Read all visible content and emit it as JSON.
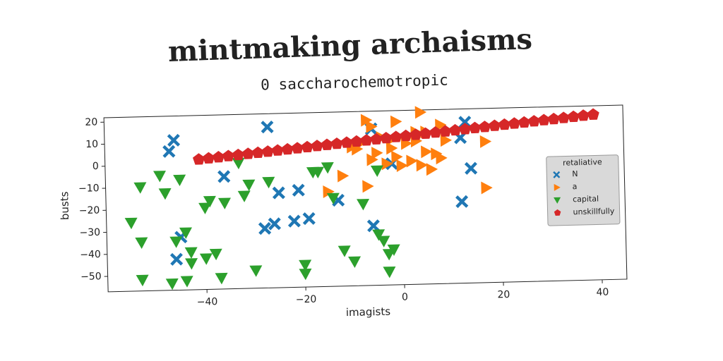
{
  "chart_data": {
    "type": "scatter",
    "title": "mintmaking archaisms",
    "subtitle": "0 saccharochemotropic",
    "x_label": "imagists",
    "y_label": "busts",
    "xlim": [
      -60,
      45
    ],
    "ylim": [
      -57,
      22
    ],
    "xticks": [
      {
        "value": -40,
        "label": "−40"
      },
      {
        "value": -20,
        "label": "−20"
      },
      0,
      20,
      40
    ],
    "yticks": [
      {
        "value": -50,
        "label": "−50"
      },
      {
        "value": -40,
        "label": "−40"
      },
      {
        "value": -30,
        "label": "−30"
      },
      {
        "value": -20,
        "label": "−20"
      },
      {
        "value": -10,
        "label": "−10"
      },
      0,
      10,
      20
    ],
    "legend_title": "retaliative",
    "legend_position": "center right",
    "series": [
      {
        "name": "N",
        "color": "#1f77b4",
        "marker": "x",
        "x": [
          -46,
          -47,
          -27,
          -36,
          -25,
          -21,
          -28,
          -26,
          -22,
          -19,
          -6,
          -13,
          -6,
          -2,
          12,
          13,
          14,
          12,
          -45,
          -46
        ],
        "y": [
          11,
          6,
          16,
          -6,
          -14,
          -13,
          -30,
          -28,
          -27,
          -26,
          -30,
          -18,
          14,
          -2,
          9,
          16,
          -5,
          -20,
          -33,
          -43
        ]
      },
      {
        "name": "a",
        "color": "#ff7f0e",
        "marker": "triangle-right",
        "x": [
          -7,
          -1,
          4,
          -6,
          -8,
          -4,
          -2,
          1,
          3,
          5,
          7,
          8,
          -5,
          -3,
          -1,
          0,
          2,
          4,
          6,
          -9,
          -6,
          -12,
          -15,
          -7,
          -10,
          8,
          17,
          17,
          3,
          9,
          5,
          -2
        ],
        "y": [
          18,
          17,
          21,
          15,
          8,
          10,
          5,
          7,
          8,
          3,
          2,
          0,
          3,
          -2,
          1,
          -3,
          -1,
          -3,
          -5,
          5,
          0,
          -7,
          -14,
          -12,
          6,
          15,
          7,
          -14,
          12,
          8,
          12,
          9
        ]
      },
      {
        "name": "capital",
        "color": "#2ca02c",
        "marker": "triangle-down",
        "x": [
          -55,
          -53,
          -53,
          -49,
          -48,
          -45,
          -44,
          -46,
          -43,
          -43,
          -47,
          -44,
          -53,
          -40,
          -39,
          -40,
          -38,
          -37,
          -36,
          -32,
          -33,
          -31,
          -27,
          -30,
          -20,
          -20,
          -17,
          -18,
          -15,
          -14,
          -12,
          -10,
          -8,
          -5,
          -5,
          -4,
          -3,
          -2,
          -3
        ],
        "y": [
          -26,
          -35,
          -10,
          -5,
          -13,
          -7,
          -31,
          -35,
          -40,
          -45,
          -54,
          -53,
          -52,
          -20,
          -17,
          -43,
          -41,
          -52,
          -18,
          -15,
          0,
          -10,
          -9,
          -49,
          -47,
          -51,
          -5,
          -5,
          -3,
          -17,
          -41,
          -46,
          -20,
          -5,
          -34,
          -37,
          -43,
          -41,
          -51
        ]
      },
      {
        "name": "unskillfully",
        "color": "#d62728",
        "marker": "pentagon",
        "x": [
          -41,
          -39,
          -37,
          -35,
          -33,
          -31,
          -29,
          -27,
          -25,
          -23,
          -21,
          -19,
          -17,
          -15,
          -13,
          -11,
          -9,
          -7,
          -5,
          -3,
          -1,
          1,
          3,
          5,
          7,
          9,
          11,
          13,
          15,
          17,
          19,
          21,
          23,
          25,
          27,
          29,
          31,
          33,
          35,
          37,
          39
        ],
        "y": [
          2,
          2.4,
          2.8,
          3.2,
          3.6,
          4,
          4.4,
          4.8,
          5.2,
          5.6,
          6,
          6.4,
          6.8,
          7.2,
          7.6,
          8,
          8.4,
          8.8,
          9.2,
          9.6,
          10,
          10.4,
          10.8,
          11.2,
          11.6,
          12,
          12.4,
          12.8,
          13.2,
          13.6,
          14,
          14.4,
          14.8,
          15.2,
          15.6,
          16,
          16.4,
          16.8,
          17.2,
          17.6,
          18
        ]
      }
    ]
  }
}
